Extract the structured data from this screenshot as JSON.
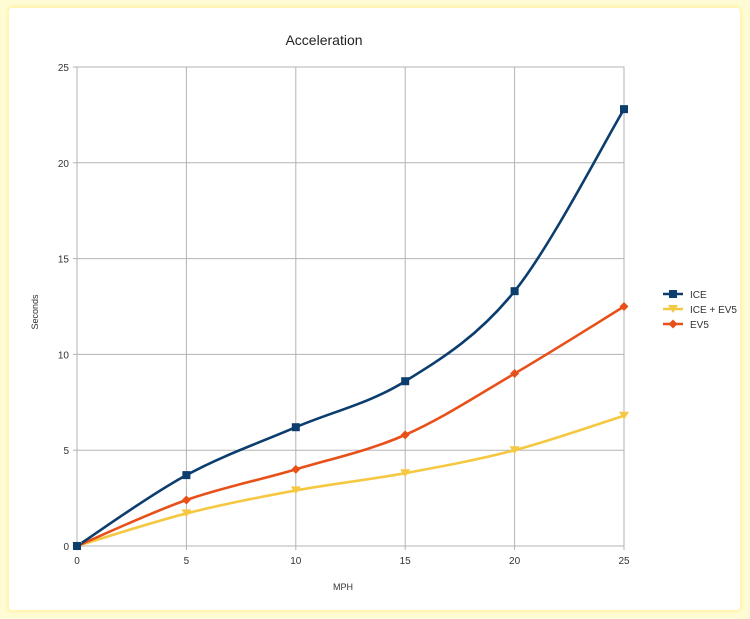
{
  "chart_data": {
    "type": "line",
    "title": "Acceleration",
    "xlabel": "MPH",
    "ylabel": "Seconds",
    "x": [
      0,
      5,
      10,
      15,
      20,
      25
    ],
    "xlim": [
      0,
      25
    ],
    "ylim": [
      0,
      25
    ],
    "xticks": [
      "0",
      "5",
      "10",
      "15",
      "20",
      "25"
    ],
    "yticks": [
      "0",
      "5",
      "10",
      "15",
      "20",
      "25"
    ],
    "grid": true,
    "legend_position": "right",
    "series": [
      {
        "name": "ICE",
        "color": "#0b3d6e",
        "marker": "square",
        "values": [
          0,
          3.7,
          6.2,
          8.6,
          13.3,
          22.8
        ]
      },
      {
        "name": "ICE + EV5",
        "color": "#f5c842",
        "marker": "triangle-down",
        "values": [
          0,
          1.7,
          2.9,
          3.8,
          5.0,
          6.8
        ]
      },
      {
        "name": "EV5",
        "color": "#e8501a",
        "marker": "diamond",
        "values": [
          0,
          2.4,
          4.0,
          5.8,
          9.0,
          12.5
        ]
      }
    ]
  }
}
